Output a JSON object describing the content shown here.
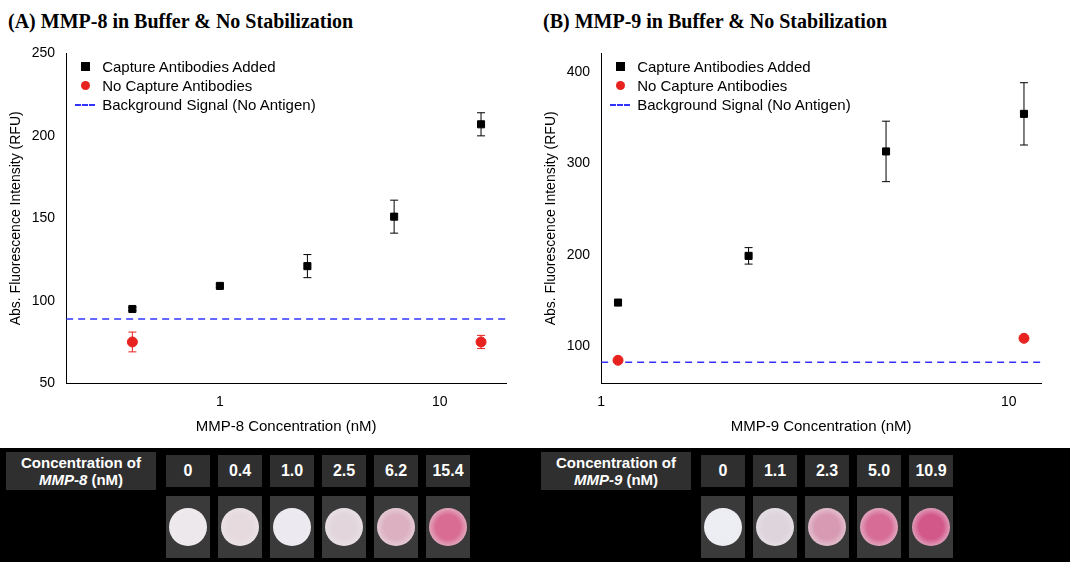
{
  "chart_data": [
    {
      "type": "scatter",
      "title": "(A) MMP-8 in Buffer & No Stabilization",
      "x_label": "MMP-8 Concentration (nM)",
      "y_label": "Abs. Fluorescence Intensity (RFU)",
      "log": "x",
      "grid": false,
      "legend": "upper left",
      "xlim": [
        0.2,
        20
      ],
      "xticks": [
        1,
        10
      ],
      "ylim": [
        50,
        250
      ],
      "yticks": [
        50,
        100,
        150,
        200,
        250
      ],
      "series": [
        {
          "name": "Capture Antibodies Added",
          "color": "#000000",
          "marker": "square",
          "x": [
            0.4,
            1.0,
            2.5,
            6.2,
            15.4
          ],
          "values": [
            95,
            109,
            121,
            151,
            207
          ],
          "errors": [
            1,
            1,
            7,
            10,
            7
          ]
        },
        {
          "name": "No Capture Antibodies",
          "color": "#e8221f",
          "marker": "circle",
          "x": [
            0.4,
            15.4
          ],
          "values": [
            75,
            75
          ],
          "errors": [
            6,
            4
          ]
        },
        {
          "name": "Background Signal (No Antigen)",
          "color": "#3333ff",
          "type": "hline",
          "line_style": "dashed",
          "values": [
            89
          ]
        }
      ]
    },
    {
      "type": "scatter",
      "title": "(B) MMP-9 in Buffer & No Stabilization",
      "x_label": "MMP-9 Concentration (nM)",
      "y_label": "Abs. Fluorescence Intensity (RFU)",
      "log": "x",
      "grid": false,
      "legend": "upper left",
      "xlim": [
        1,
        12
      ],
      "xticks": [
        1,
        10
      ],
      "ylim": [
        60,
        420
      ],
      "yticks": [
        100,
        200,
        300,
        400
      ],
      "series": [
        {
          "name": "Capture Antibodies Added",
          "color": "#000000",
          "marker": "square",
          "x": [
            1.1,
            2.3,
            5.0,
            10.9
          ],
          "values": [
            148,
            199,
            313,
            354
          ],
          "errors": [
            3,
            9,
            33,
            34
          ]
        },
        {
          "name": "No Capture Antibodies",
          "color": "#e8221f",
          "marker": "circle",
          "x": [
            1.1,
            10.9
          ],
          "values": [
            85,
            109
          ],
          "errors": [
            2,
            3
          ]
        },
        {
          "name": "Background Signal (No Antigen)",
          "color": "#3333ff",
          "type": "hline",
          "line_style": "dashed",
          "values": [
            83
          ]
        }
      ]
    }
  ],
  "strips": [
    {
      "label": "Concentration of MMP-8 (nM)",
      "italic": "MMP-8",
      "values": [
        "0",
        "0.4",
        "1.0",
        "2.5",
        "6.2",
        "15.4"
      ],
      "spot_colors": [
        "#ece8ec",
        "#e6dade",
        "#eceaf0",
        "#e2d6dc",
        "#dcb0c0",
        "#d86c92"
      ]
    },
    {
      "label": "Concentration of MMP-9 (nM)",
      "italic": "MMP-9",
      "values": [
        "0",
        "1.1",
        "2.3",
        "5.0",
        "10.9"
      ],
      "spot_colors": [
        "#eceef4",
        "#ddd4dc",
        "#d89ab2",
        "#d76c96",
        "#d2588a"
      ]
    }
  ]
}
